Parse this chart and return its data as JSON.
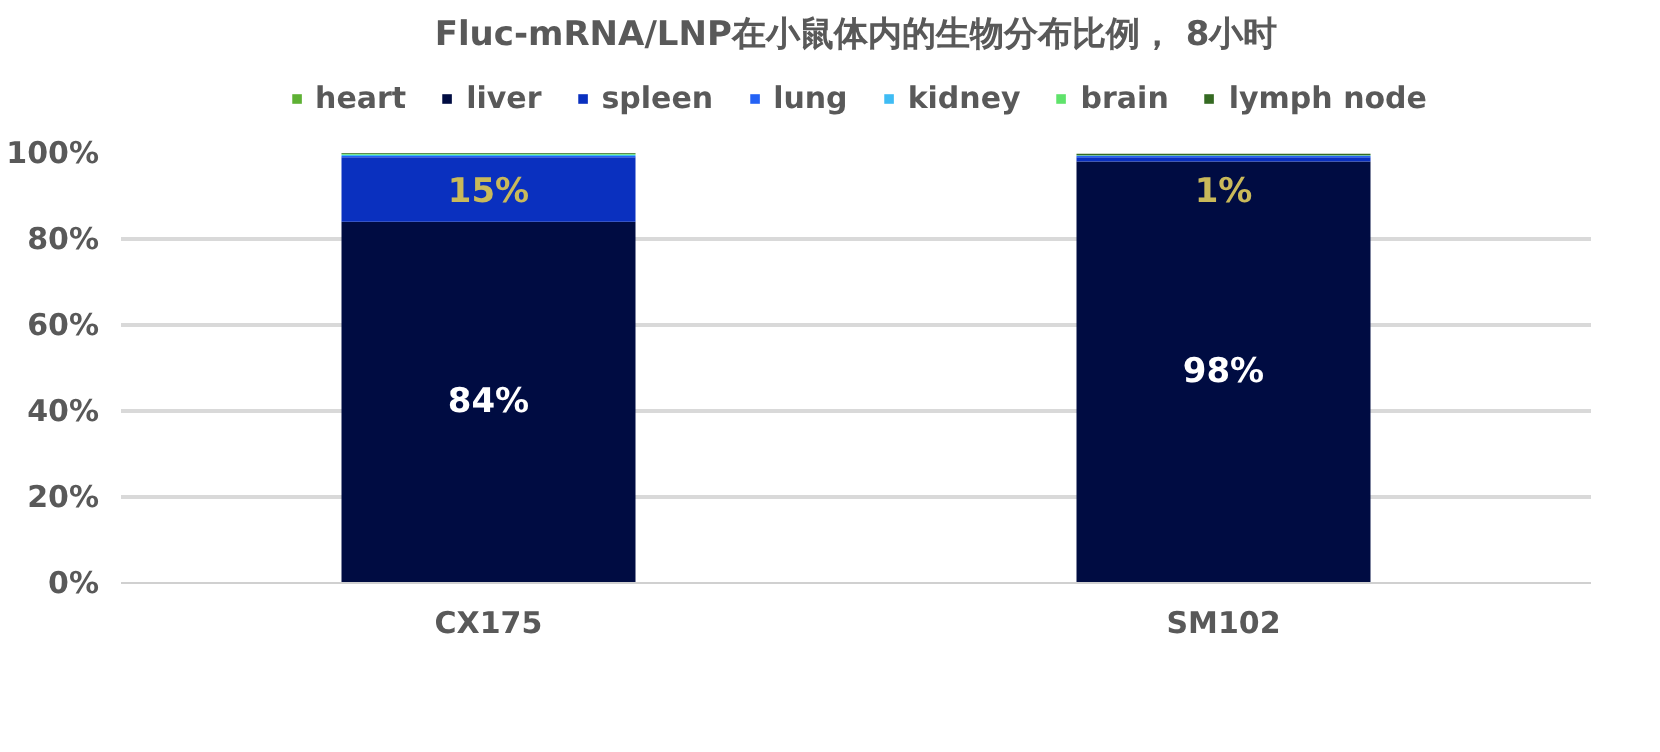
{
  "chart_data": {
    "type": "bar",
    "stacked": true,
    "title": "Fluc-mRNA/LNP在小鼠体内的生物分布比例， 8小时",
    "categories": [
      "CX175",
      "SM102"
    ],
    "series": [
      {
        "name": "heart",
        "color": "#5eb134",
        "values": [
          null,
          null
        ]
      },
      {
        "name": "liver",
        "color": "#000c42",
        "values": [
          84,
          98
        ],
        "value_labels": [
          "84%",
          "98%"
        ]
      },
      {
        "name": "spleen",
        "color": "#0a30bf",
        "values": [
          15,
          1
        ],
        "value_labels": [
          "15%",
          "1%"
        ]
      },
      {
        "name": "lung",
        "color": "#2462f5",
        "values": [
          0.3,
          0.3
        ]
      },
      {
        "name": "kidney",
        "color": "#3fbcf4",
        "values": [
          0.3,
          0.1
        ]
      },
      {
        "name": "brain",
        "color": "#5fe36b",
        "values": [
          0.2,
          0.1
        ]
      },
      {
        "name": "lymph node",
        "color": "#356a22",
        "values": [
          0.3,
          0.3
        ]
      }
    ],
    "ylim": [
      0,
      100
    ],
    "yticks": [
      {
        "value": 0,
        "label": "0%"
      },
      {
        "value": 20,
        "label": "20%"
      },
      {
        "value": 40,
        "label": "40%"
      },
      {
        "value": 60,
        "label": "60%"
      },
      {
        "value": 80,
        "label": "80%"
      },
      {
        "value": 100,
        "label": "100%"
      }
    ],
    "grid": "y",
    "legend": "top"
  }
}
